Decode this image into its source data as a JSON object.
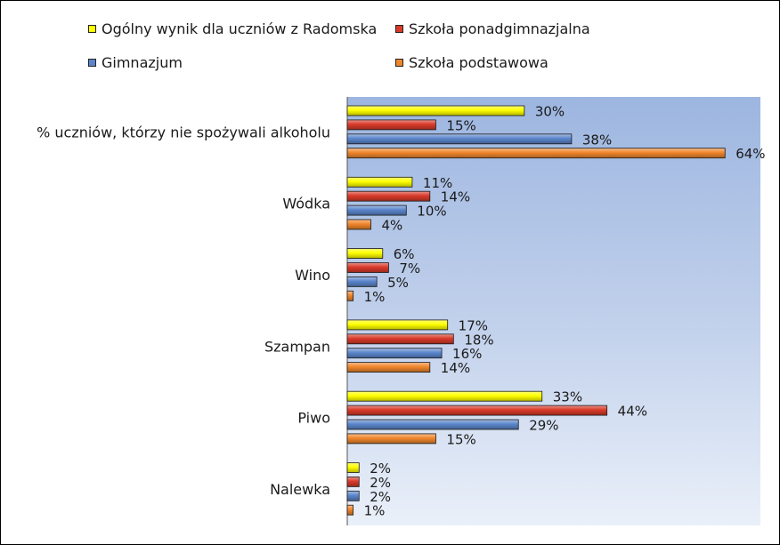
{
  "chart_data": {
    "type": "bar",
    "orientation": "horizontal",
    "categories": [
      "% uczniów, którzy nie spożywali alkoholu",
      "Wódka",
      "Wino",
      "Szampan",
      "Piwo",
      "Nalewka"
    ],
    "series": [
      {
        "name": "Ogólny wynik dla uczniów z Radomska",
        "color": "#ffff00",
        "values": [
          30,
          11,
          6,
          17,
          33,
          2
        ]
      },
      {
        "name": "Szkoła ponadgimnazjalna",
        "color": "#d93a2a",
        "values": [
          15,
          14,
          7,
          18,
          44,
          2
        ]
      },
      {
        "name": "Gimnazjum",
        "color": "#5b86cc",
        "values": [
          38,
          10,
          5,
          16,
          29,
          2
        ]
      },
      {
        "name": "Szkoła podstawowa",
        "color": "#f0862c",
        "values": [
          64,
          4,
          1,
          14,
          15,
          1
        ]
      }
    ],
    "value_suffix": "%",
    "xlim": [
      0,
      70
    ],
    "legend_position": "top",
    "grid": false
  }
}
